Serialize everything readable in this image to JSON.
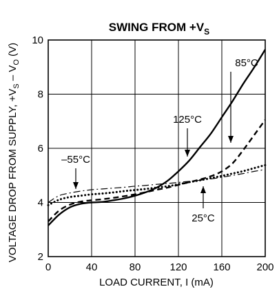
{
  "chart_data": {
    "type": "line",
    "title": "SWING FROM +V",
    "title_subscript": "S",
    "xlabel": "LOAD CURRENT, I (mA)",
    "ylabel_main": "VOLTAGE DROP FROM SUPPLY, +V",
    "ylabel_sub1": "S",
    "ylabel_mid": " – V",
    "ylabel_sub2": "O",
    "ylabel_tail": " (V)",
    "xlim": [
      0,
      200
    ],
    "ylim": [
      2,
      10
    ],
    "xticks": [
      0,
      40,
      80,
      120,
      160,
      200
    ],
    "yticks": [
      2,
      4,
      6,
      8,
      10
    ],
    "grid": true,
    "series": [
      {
        "name": "125°C",
        "style": "solid",
        "x": [
          0,
          10,
          20,
          30,
          40,
          50,
          60,
          70,
          80,
          90,
          100,
          110,
          120,
          130,
          140,
          150,
          160,
          170,
          180,
          190,
          200
        ],
        "y": [
          3.15,
          3.55,
          3.82,
          3.95,
          4.0,
          4.02,
          4.08,
          4.15,
          4.25,
          4.38,
          4.55,
          4.8,
          5.15,
          5.55,
          6.05,
          6.55,
          7.15,
          7.75,
          8.4,
          9.0,
          9.65
        ]
      },
      {
        "name": "85°C",
        "style": "dashed",
        "x": [
          0,
          10,
          20,
          30,
          40,
          50,
          60,
          70,
          80,
          90,
          100,
          110,
          120,
          130,
          140,
          150,
          160,
          170,
          180,
          190,
          200
        ],
        "y": [
          3.3,
          3.7,
          3.92,
          4.03,
          4.08,
          4.12,
          4.17,
          4.23,
          4.3,
          4.38,
          4.47,
          4.55,
          4.65,
          4.75,
          4.85,
          4.97,
          5.15,
          5.45,
          5.95,
          6.5,
          7.05
        ]
      },
      {
        "name": "25°C",
        "style": "dotted",
        "x": [
          0,
          10,
          20,
          30,
          40,
          50,
          60,
          70,
          80,
          90,
          100,
          110,
          120,
          130,
          140,
          150,
          160,
          170,
          180,
          190,
          200
        ],
        "y": [
          3.9,
          4.1,
          4.2,
          4.25,
          4.3,
          4.33,
          4.37,
          4.42,
          4.46,
          4.5,
          4.55,
          4.6,
          4.67,
          4.75,
          4.82,
          4.9,
          4.98,
          5.07,
          5.16,
          5.27,
          5.38
        ]
      },
      {
        "name": "–55°C",
        "style": "dashdot",
        "x": [
          0,
          10,
          20,
          30,
          40,
          50,
          60,
          70,
          80,
          90,
          100,
          110,
          120,
          130,
          140,
          150,
          160,
          170,
          180,
          190,
          200
        ],
        "y": [
          4.0,
          4.25,
          4.35,
          4.42,
          4.47,
          4.5,
          4.53,
          4.56,
          4.6,
          4.63,
          4.67,
          4.7,
          4.74,
          4.78,
          4.82,
          4.87,
          4.93,
          5.0,
          5.07,
          5.15,
          5.22
        ]
      }
    ],
    "annotations": [
      {
        "label": "125°C"
      },
      {
        "label": "85°C"
      },
      {
        "label": "–55°C"
      },
      {
        "label": "25°C"
      }
    ]
  }
}
